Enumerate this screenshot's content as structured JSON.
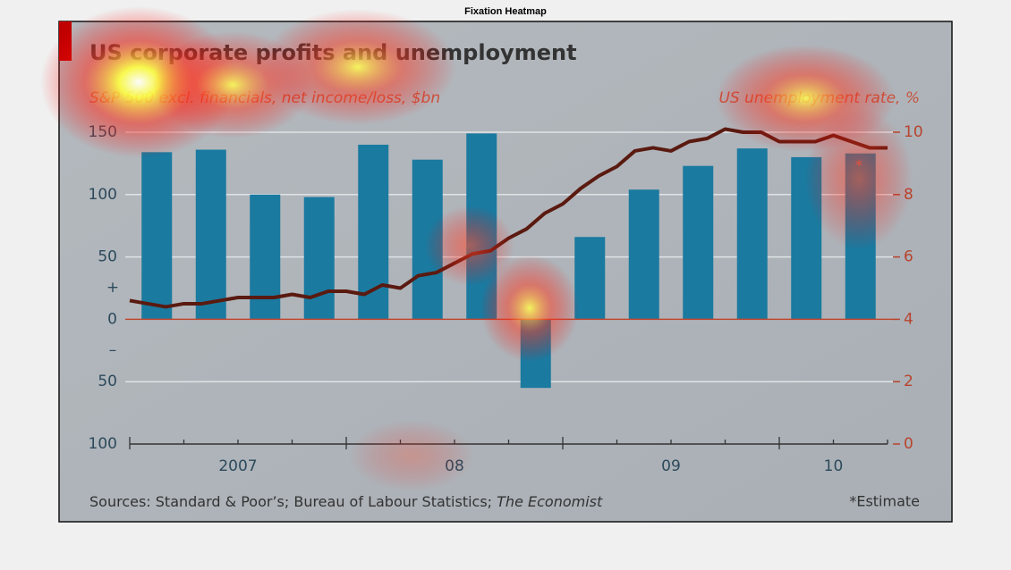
{
  "heading": "Fixation Heatmap",
  "chart_data": {
    "type": "bar",
    "title": "US corporate profits and unemployment",
    "y_label": "S&P 500 excl. financials, net income/loss, $bn",
    "y2_label": "US unemployment rate, %",
    "annotations": {
      "plus": "+",
      "minus": "–",
      "estimate_mark": "*",
      "estimate": "*Estimate"
    },
    "sources": [
      "Sources: Standard & Poor’s; Bureau of Labour Statistics; ",
      "The Economist"
    ],
    "xlim": [
      2007,
      2010.5
    ],
    "xticks": [
      {
        "value": 2007.5,
        "label": "2007"
      },
      {
        "value": 2008.5,
        "label": "08"
      },
      {
        "value": 2009.5,
        "label": "09"
      },
      {
        "value": 2010.25,
        "label": "10"
      }
    ],
    "ylim": [
      -100,
      150
    ],
    "yticks": [
      150,
      100,
      50,
      0,
      {
        "value": -50,
        "label": "50"
      },
      {
        "value": -100,
        "label": "100"
      }
    ],
    "y2lim": [
      0,
      10
    ],
    "y2ticks": [
      0,
      2,
      4,
      6,
      8,
      10
    ],
    "grid": true,
    "series": [
      {
        "name": "S&P 500 excl. financials, net income/loss",
        "type": "bar",
        "color": "#1a7aa0",
        "x": [
          2007.125,
          2007.375,
          2007.625,
          2007.875,
          2008.125,
          2008.375,
          2008.625,
          2008.875,
          2009.125,
          2009.375,
          2009.625,
          2009.875,
          2010.125,
          2010.375
        ],
        "values": [
          134,
          136,
          100,
          98,
          140,
          128,
          149,
          -55,
          66,
          104,
          123,
          137,
          130,
          133
        ]
      },
      {
        "name": "US unemployment rate",
        "type": "line",
        "axis": "y2",
        "color": "#5a1a10",
        "x": [
          2007,
          2007.0833,
          2007.1667,
          2007.25,
          2007.3333,
          2007.4167,
          2007.5,
          2007.5833,
          2007.6667,
          2007.75,
          2007.8333,
          2007.9167,
          2008,
          2008.0833,
          2008.1667,
          2008.25,
          2008.3333,
          2008.4167,
          2008.5,
          2008.5833,
          2008.6667,
          2008.75,
          2008.8333,
          2008.9167,
          2009,
          2009.0833,
          2009.1667,
          2009.25,
          2009.3333,
          2009.4167,
          2009.5,
          2009.5833,
          2009.6667,
          2009.75,
          2009.8333,
          2009.9167,
          2010,
          2010.0833,
          2010.1667,
          2010.25,
          2010.3333,
          2010.4167,
          2010.5
        ],
        "values": [
          4.6,
          4.5,
          4.4,
          4.5,
          4.5,
          4.6,
          4.7,
          4.7,
          4.7,
          4.8,
          4.7,
          4.9,
          4.9,
          4.8,
          5.1,
          5.0,
          5.4,
          5.5,
          5.8,
          6.1,
          6.2,
          6.6,
          6.9,
          7.4,
          7.7,
          8.2,
          8.6,
          8.9,
          9.4,
          9.5,
          9.4,
          9.7,
          9.8,
          10.1,
          10.0,
          10.0,
          9.7,
          9.7,
          9.7,
          9.9,
          9.7,
          9.5,
          9.5
        ]
      }
    ]
  }
}
